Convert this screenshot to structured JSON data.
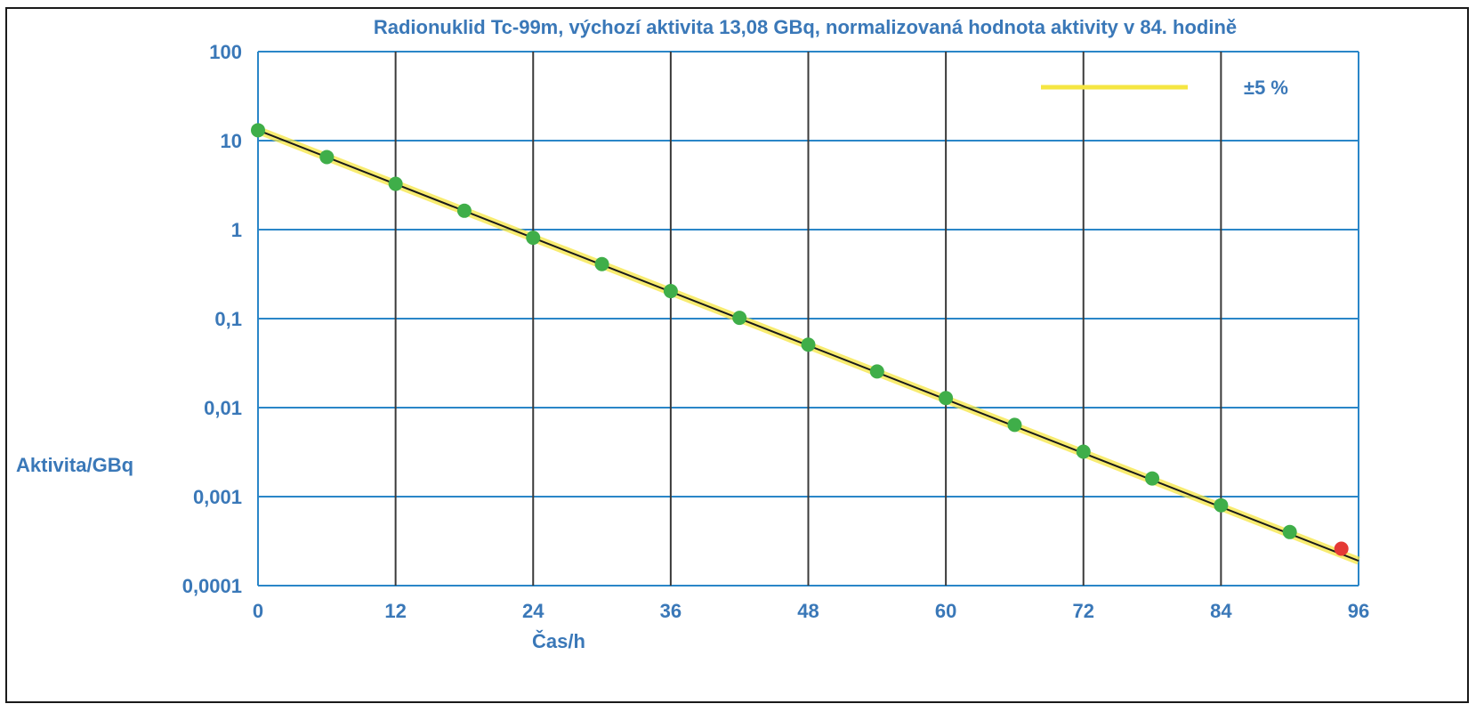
{
  "chart_data": {
    "type": "scatter",
    "title": "Radionuklid Tc-99m, výchozí aktivita 13,08 GBq, normalizovaná hodnota aktivity v 84. hodině",
    "xlabel": "Čas/h",
    "ylabel": "Aktivita/GBq",
    "y_scale": "log",
    "xlim": [
      0,
      96
    ],
    "ylim": [
      0.0001,
      100
    ],
    "x_ticks": [
      "0",
      "12",
      "24",
      "36",
      "48",
      "60",
      "72",
      "84",
      "96"
    ],
    "x_tick_values": [
      0,
      12,
      24,
      36,
      48,
      60,
      72,
      84,
      96
    ],
    "y_ticks": [
      "100",
      "10",
      "1",
      "0,1",
      "0,01",
      "0,001",
      "0,0001"
    ],
    "y_tick_values": [
      100,
      10,
      1,
      0.1,
      0.01,
      0.001,
      0.0001
    ],
    "grid": true,
    "legend_position": "top-right",
    "legend": [
      {
        "label": "±5 %",
        "color": "#f5e642"
      }
    ],
    "band_color": "#f5e642",
    "line_color": "#1a1a1a",
    "point_color": "#3fae49",
    "highlight_color": "#e53935",
    "fit_line": {
      "x": [
        0,
        96
      ],
      "y": [
        13.08,
        0.00019
      ]
    },
    "points": [
      {
        "x": 0,
        "y": 13.08
      },
      {
        "x": 6,
        "y": 6.54
      },
      {
        "x": 12,
        "y": 3.27
      },
      {
        "x": 18,
        "y": 1.63
      },
      {
        "x": 24,
        "y": 0.81
      },
      {
        "x": 30,
        "y": 0.41
      },
      {
        "x": 36,
        "y": 0.204
      },
      {
        "x": 42,
        "y": 0.102
      },
      {
        "x": 48,
        "y": 0.051
      },
      {
        "x": 54,
        "y": 0.0255
      },
      {
        "x": 60,
        "y": 0.0128
      },
      {
        "x": 66,
        "y": 0.0064
      },
      {
        "x": 72,
        "y": 0.0032
      },
      {
        "x": 78,
        "y": 0.0016
      },
      {
        "x": 84,
        "y": 0.0008
      },
      {
        "x": 90,
        "y": 0.0004
      }
    ],
    "highlight_point": {
      "x": 94.5,
      "y": 0.00026
    }
  }
}
